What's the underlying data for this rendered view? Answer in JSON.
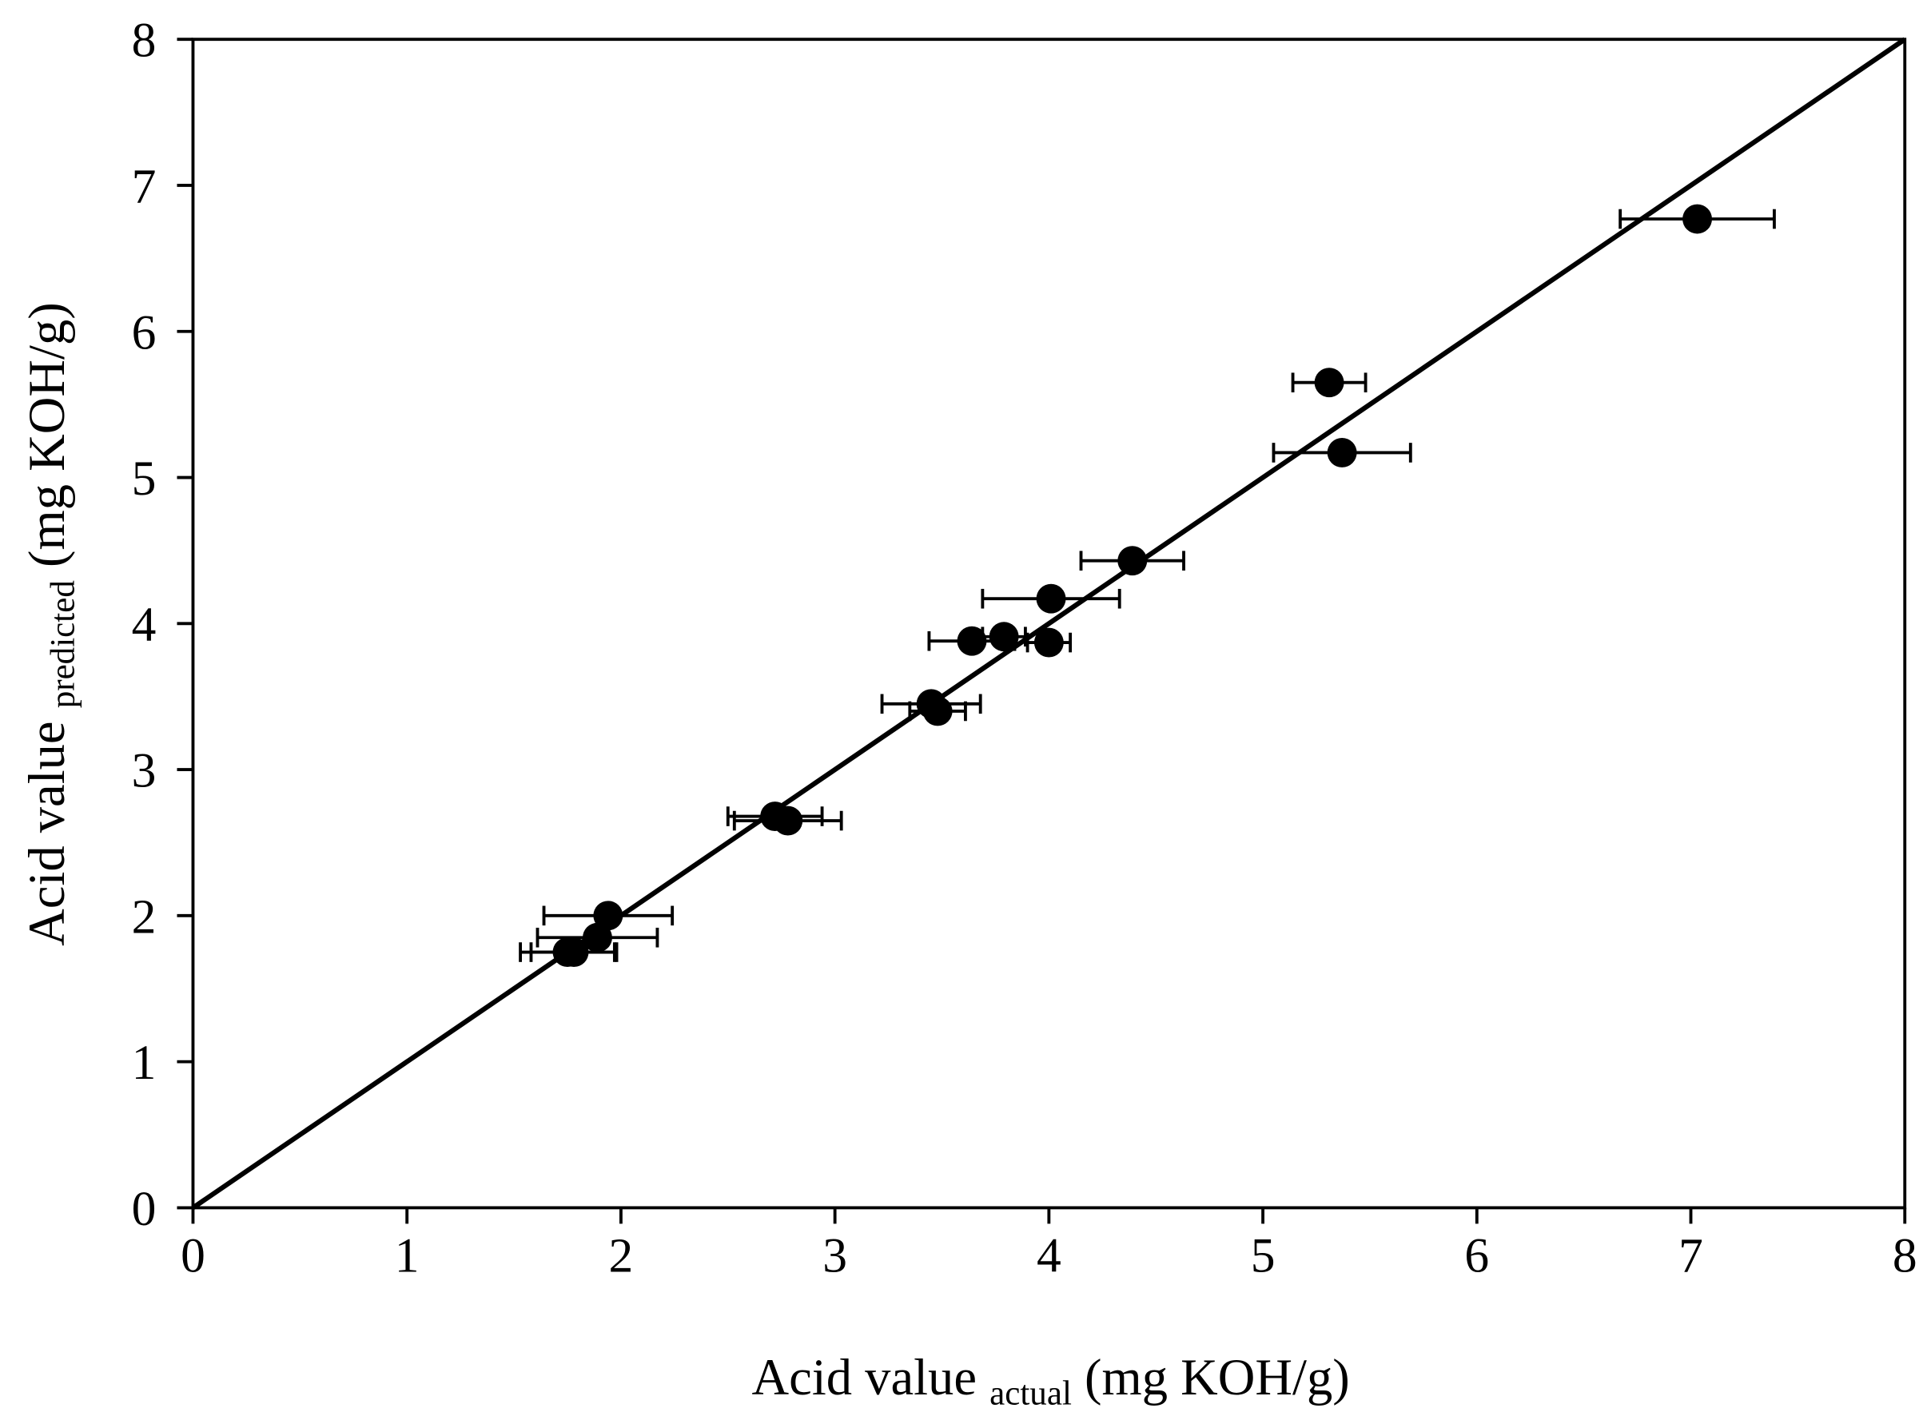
{
  "chart_data": {
    "type": "scatter",
    "x_label": {
      "main": "Acid value",
      "sub": "actual",
      "unit": "(mg KOH/g)"
    },
    "y_label": {
      "main": "Acid value",
      "sub": "predicted",
      "unit": "(mg KOH/g)"
    },
    "xlim": [
      0,
      8
    ],
    "ylim": [
      0,
      8
    ],
    "xticks": [
      0,
      1,
      2,
      3,
      4,
      5,
      6,
      7,
      8
    ],
    "yticks": [
      0,
      1,
      2,
      3,
      4,
      5,
      6,
      7,
      8
    ],
    "reference_line": {
      "x": [
        0,
        8
      ],
      "y": [
        0,
        8
      ],
      "color": "#000000"
    },
    "series": [
      {
        "color": "#000000",
        "x": [
          7.03,
          5.31,
          5.37,
          4.39,
          4.01,
          3.64,
          3.79,
          4.0,
          3.45,
          3.48,
          2.72,
          2.78,
          1.94,
          1.89,
          1.75,
          1.78
        ],
        "values": [
          6.77,
          5.65,
          5.17,
          4.43,
          4.17,
          3.88,
          3.91,
          3.87,
          3.45,
          3.4,
          2.68,
          2.65,
          2.0,
          1.85,
          1.75,
          1.75
        ],
        "xerr": [
          0.36,
          0.17,
          0.32,
          0.24,
          0.32,
          0.2,
          0.1,
          0.1,
          0.23,
          0.13,
          0.22,
          0.25,
          0.3,
          0.28,
          0.22,
          0.2
        ]
      }
    ]
  }
}
